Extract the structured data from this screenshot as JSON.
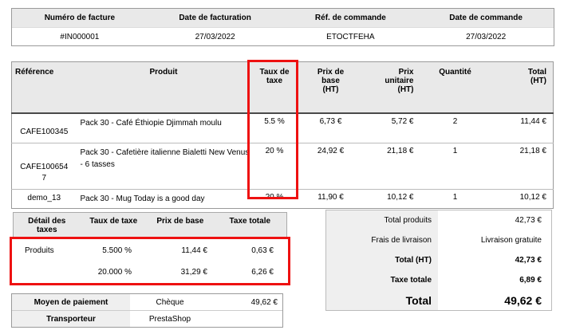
{
  "colors": {
    "highlight_red": "#ee1111",
    "header_gray": "#e9e9e9",
    "panel_gray": "#efefef"
  },
  "invoice_info": {
    "headers": [
      "Numéro de facture",
      "Date de facturation",
      "Réf. de commande",
      "Date de commande"
    ],
    "values": [
      "#IN000001",
      "27/03/2022",
      "ETOCTFEHA",
      "27/03/2022"
    ]
  },
  "products": {
    "headers": {
      "reference": "Référence",
      "product": "Produit",
      "tax_rate": "Taux de taxe",
      "base_price": "Prix de base (HT)",
      "unit_price": "Prix unitaire (HT)",
      "quantity": "Quantité",
      "total": "Total (HT)"
    },
    "rows": [
      {
        "reference": "CAFE100345",
        "product": "Pack 30 - Café Éthiopie Djimmah moulu",
        "tax_rate": "5.5 %",
        "base_price": "6,73 €",
        "unit_price": "5,72 €",
        "quantity": "2",
        "total": "11,44 €"
      },
      {
        "reference": "CAFE1006547",
        "product": "Pack 30 - Cafetière italienne Bialetti New Venus - 6 tasses",
        "tax_rate": "20 %",
        "base_price": "24,92 €",
        "unit_price": "21,18 €",
        "quantity": "1",
        "total": "21,18 €"
      },
      {
        "reference": "demo_13",
        "product": "Pack 30 - Mug Today is a good day",
        "tax_rate": "20 %",
        "base_price": "11,90 €",
        "unit_price": "10,12 €",
        "quantity": "1",
        "total": "10,12 €"
      }
    ]
  },
  "tax_details": {
    "headers": [
      "Détail des taxes",
      "Taux de taxe",
      "Prix de base",
      "Taxe totale"
    ],
    "rows": [
      {
        "label": "Produits",
        "rate": "5.500 %",
        "base": "11,44 €",
        "total": "0,63 €"
      },
      {
        "label": "",
        "rate": "20.000 %",
        "base": "31,29 €",
        "total": "6,26 €"
      }
    ]
  },
  "payment": {
    "rows": [
      {
        "label": "Moyen de paiement",
        "value": "Chèque",
        "amount": "49,62 €"
      },
      {
        "label": "Transporteur",
        "value": "PrestaShop",
        "amount": ""
      }
    ]
  },
  "totals": {
    "rows": [
      {
        "label": "Total produits",
        "value": "42,73 €"
      },
      {
        "label": "Frais de livraison",
        "value": "Livraison gratuite"
      },
      {
        "label": "Total (HT)",
        "value": "42,73 €"
      },
      {
        "label": "Taxe totale",
        "value": "6,89 €"
      },
      {
        "label": "Total",
        "value": "49,62 €"
      }
    ]
  }
}
